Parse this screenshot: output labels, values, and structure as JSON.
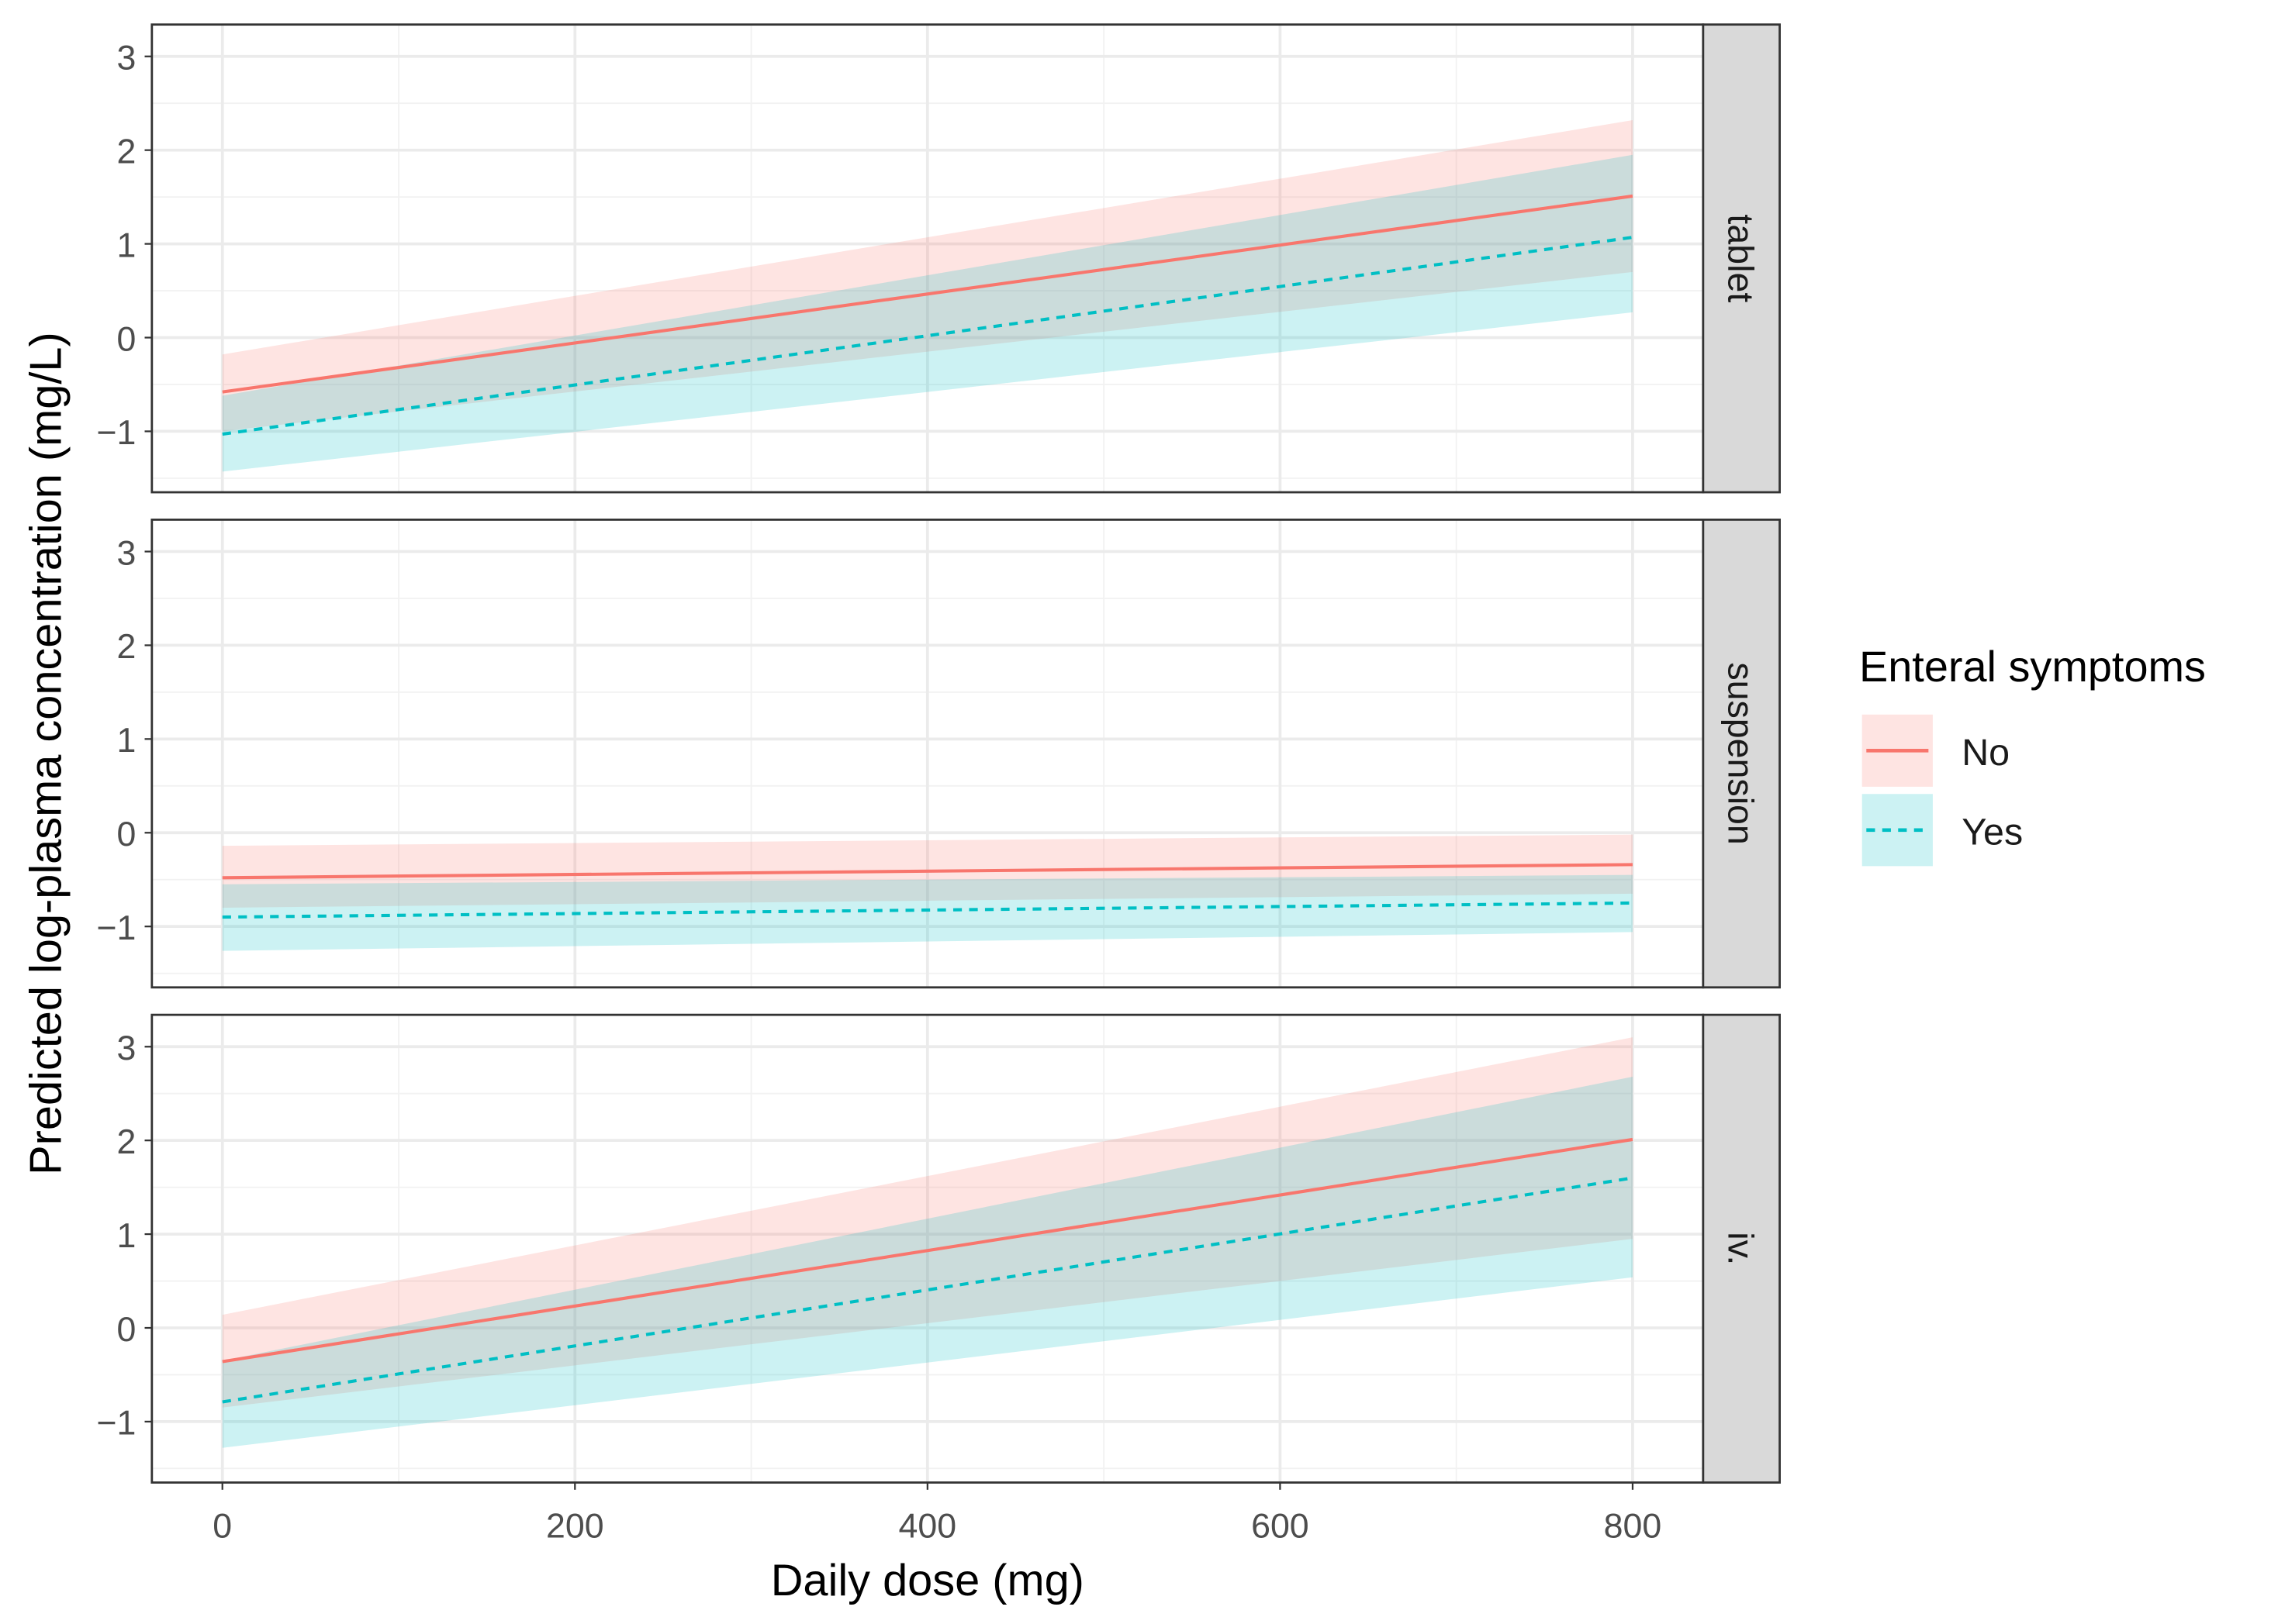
{
  "chart_data": {
    "type": "line",
    "xlabel": "Daily dose (mg)",
    "ylabel": "Predicted log-plasma concentration (mg/L)",
    "xlim": [
      -40,
      840
    ],
    "ylim": [
      -1.65,
      3.34
    ],
    "x_ticks": [
      0,
      200,
      400,
      600,
      800
    ],
    "y_ticks": [
      -1,
      0,
      1,
      2,
      3
    ],
    "y_tick_labels": [
      "−1",
      "0",
      "1",
      "2",
      "3"
    ],
    "x_tick_labels": [
      "0",
      "200",
      "400",
      "600",
      "800"
    ],
    "grid": true,
    "legend": {
      "title": "Enteral symptoms",
      "placement": "right",
      "entries": [
        {
          "label": "No",
          "color": "#F8766D",
          "linetype": "solid"
        },
        {
          "label": "Yes",
          "color": "#00BFC4",
          "linetype": "dashed"
        }
      ]
    },
    "facets": [
      {
        "label": "tablet",
        "series": [
          {
            "name": "No",
            "x": [
              0,
              800
            ],
            "y": [
              -0.58,
              1.51
            ],
            "lower": [
              -1.0,
              0.7
            ],
            "upper": [
              -0.18,
              2.32
            ]
          },
          {
            "name": "Yes",
            "x": [
              0,
              800
            ],
            "y": [
              -1.03,
              1.07
            ],
            "lower": [
              -1.43,
              0.27
            ],
            "upper": [
              -0.62,
              1.95
            ]
          }
        ]
      },
      {
        "label": "suspension",
        "series": [
          {
            "name": "No",
            "x": [
              0,
              800
            ],
            "y": [
              -0.48,
              -0.34
            ],
            "lower": [
              -0.8,
              -0.65
            ],
            "upper": [
              -0.14,
              -0.02
            ]
          },
          {
            "name": "Yes",
            "x": [
              0,
              800
            ],
            "y": [
              -0.9,
              -0.75
            ],
            "lower": [
              -1.26,
              -1.06
            ],
            "upper": [
              -0.55,
              -0.45
            ]
          }
        ]
      },
      {
        "label": "iv.",
        "series": [
          {
            "name": "No",
            "x": [
              0,
              800
            ],
            "y": [
              -0.36,
              2.01
            ],
            "lower": [
              -0.85,
              0.95
            ],
            "upper": [
              0.14,
              3.1
            ]
          },
          {
            "name": "Yes",
            "x": [
              0,
              800
            ],
            "y": [
              -0.79,
              1.6
            ],
            "lower": [
              -1.28,
              0.54
            ],
            "upper": [
              -0.35,
              2.68
            ]
          }
        ]
      }
    ]
  }
}
